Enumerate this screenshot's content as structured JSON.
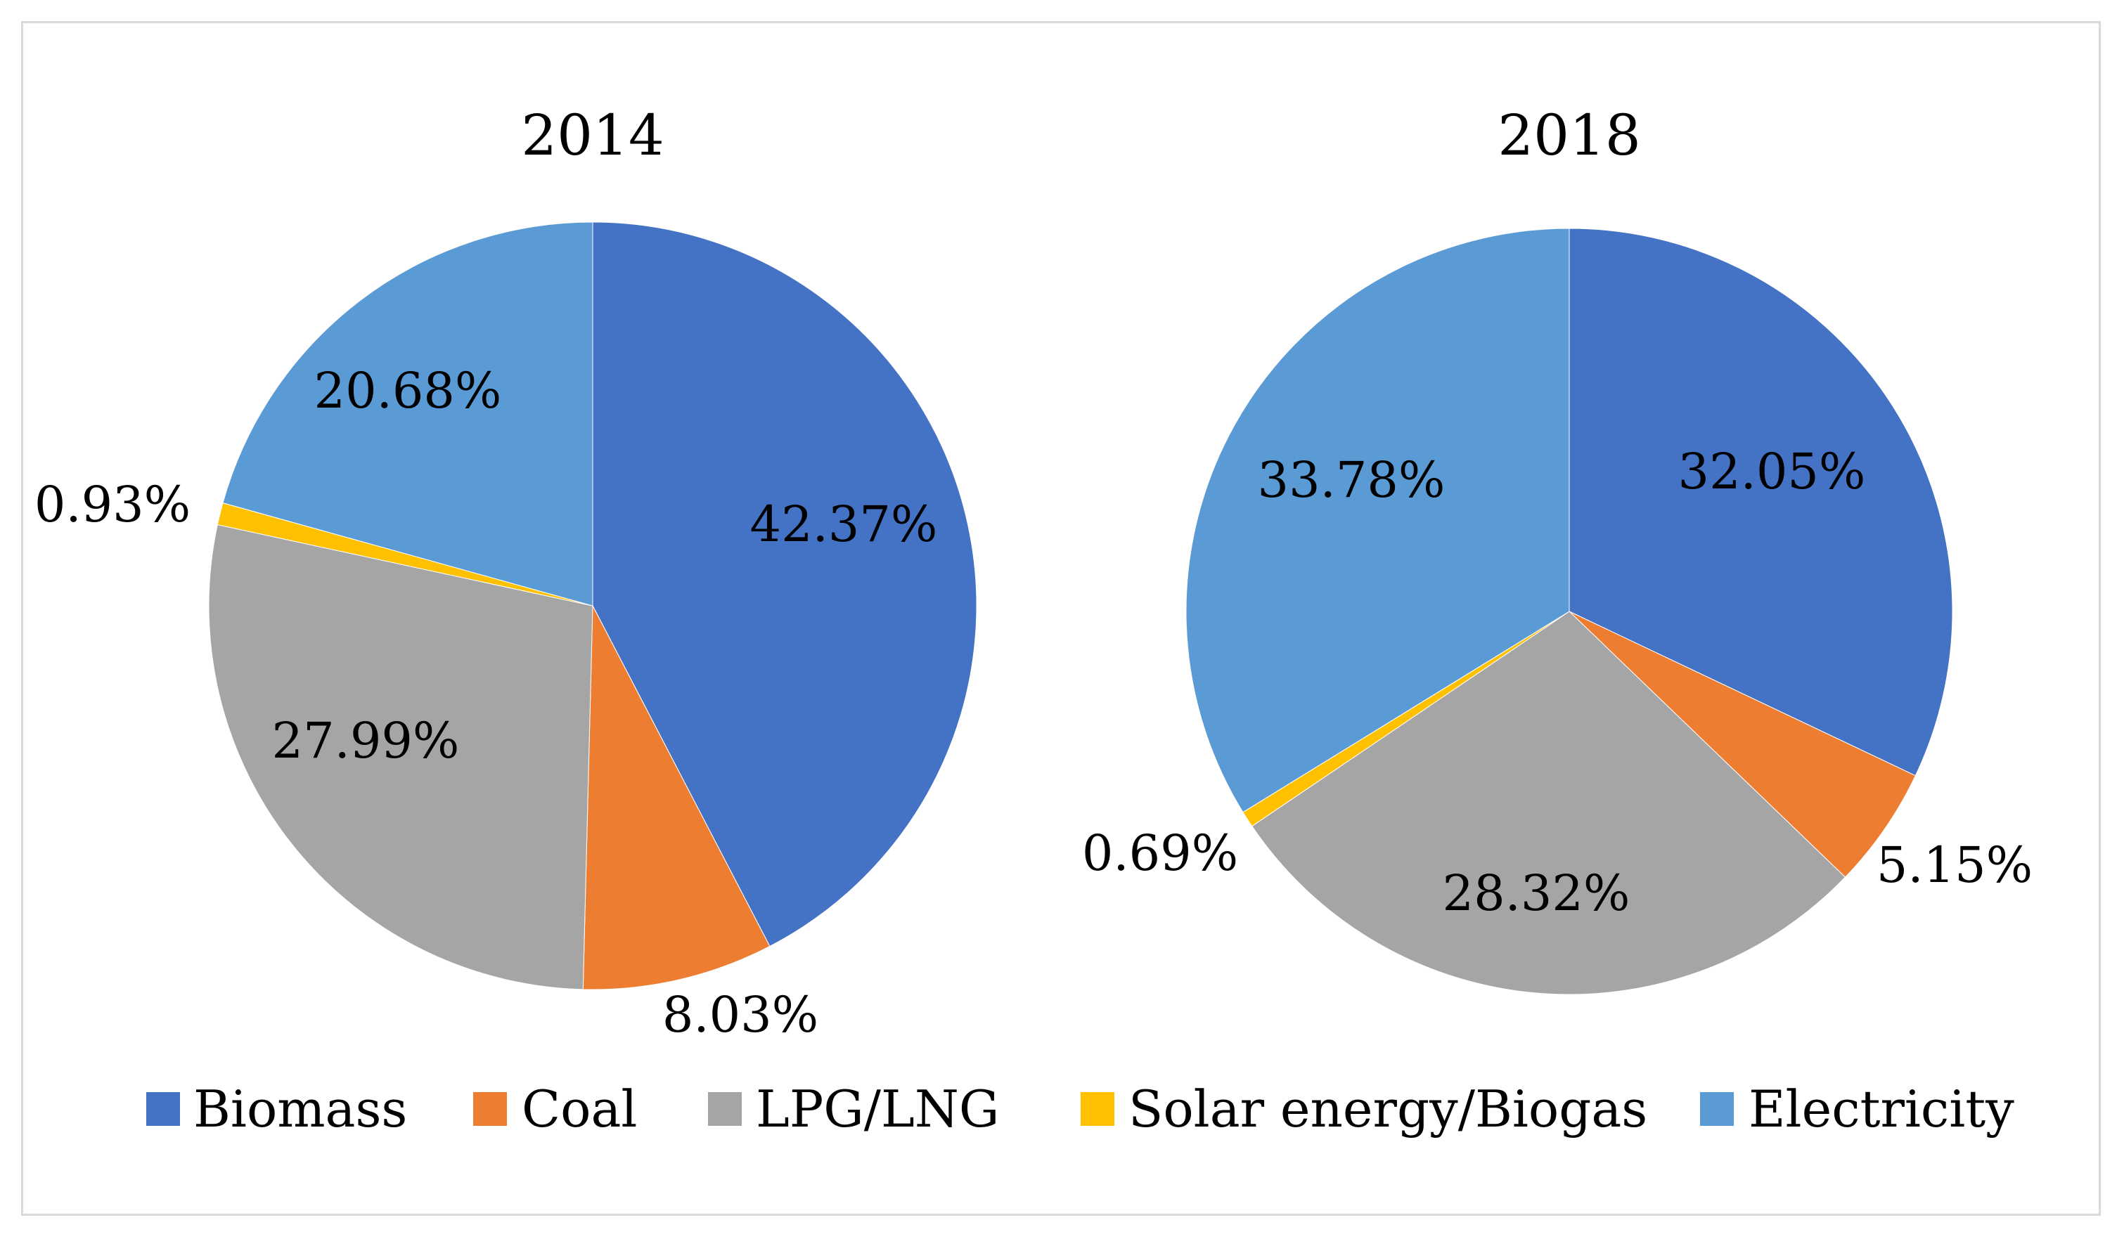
{
  "chart_data": [
    {
      "type": "pie",
      "title": "2014",
      "categories": [
        "Biomass",
        "Coal",
        "LPG/LNG",
        "Solar energy/Biogas",
        "Electricity"
      ],
      "values": [
        42.37,
        8.03,
        27.99,
        0.93,
        20.68
      ],
      "labels": [
        "42.37%",
        "8.03%",
        "27.99%",
        "0.93%",
        "20.68%"
      ]
    },
    {
      "type": "pie",
      "title": "2018",
      "categories": [
        "Biomass",
        "Coal",
        "LPG/LNG",
        "Solar energy/Biogas",
        "Electricity"
      ],
      "values": [
        32.05,
        5.15,
        28.32,
        0.69,
        33.78
      ],
      "labels": [
        "32.05%",
        "5.15%",
        "28.32%",
        "0.69%",
        "33.78%"
      ]
    }
  ],
  "legend": {
    "position": "bottom",
    "items": [
      {
        "label": "Biomass",
        "color": "#4472c4"
      },
      {
        "label": "Coal",
        "color": "#ed7d31"
      },
      {
        "label": "LPG/LNG",
        "color": "#a5a5a5"
      },
      {
        "label": "Solar energy/Biogas",
        "color": "#ffc000"
      },
      {
        "label": "Electricity",
        "color": "#5b9bd5"
      }
    ]
  }
}
